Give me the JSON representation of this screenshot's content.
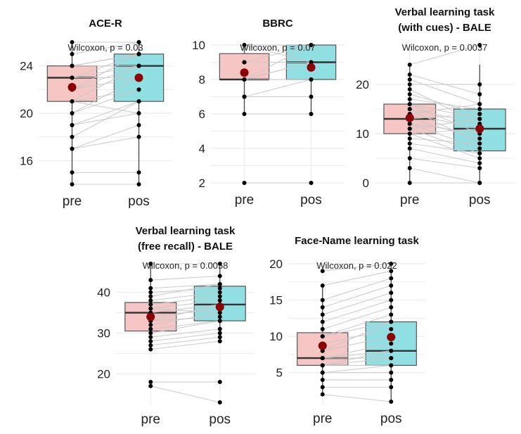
{
  "colors": {
    "pre": "#f5c6c3",
    "pos": "#8fdfe3",
    "mean": "#8b0000",
    "pair": "#c8c8c8",
    "point": "#000000",
    "grid": "#ececec"
  },
  "chart_data": [
    {
      "type": "boxplot",
      "title": [
        "ACE-R"
      ],
      "test_label": "Wilcoxon, p = 0.03",
      "categories": [
        "pre",
        "pos"
      ],
      "ylim": [
        14,
        26
      ],
      "yticks": [
        16,
        20,
        24
      ],
      "boxes": [
        {
          "group": "pre",
          "q1": 21,
          "median": 23,
          "q3": 24,
          "whisker_low": 14,
          "whisker_high": 26,
          "mean": 22.2
        },
        {
          "group": "pos",
          "q1": 21,
          "median": 24,
          "q3": 25,
          "whisker_low": 14,
          "whisker_high": 26,
          "mean": 23
        }
      ],
      "pairs": [
        [
          26,
          26
        ],
        [
          25,
          26
        ],
        [
          24,
          25
        ],
        [
          24,
          25
        ],
        [
          24,
          24
        ],
        [
          23,
          25
        ],
        [
          23,
          24
        ],
        [
          23,
          23
        ],
        [
          22,
          25
        ],
        [
          22,
          24
        ],
        [
          22,
          23
        ],
        [
          21,
          24
        ],
        [
          21,
          22
        ],
        [
          21,
          20
        ],
        [
          20,
          23
        ],
        [
          20,
          22
        ],
        [
          19,
          21
        ],
        [
          19,
          20
        ],
        [
          18,
          21
        ],
        [
          17,
          19
        ],
        [
          17,
          18
        ],
        [
          15,
          15
        ],
        [
          14,
          14
        ]
      ]
    },
    {
      "type": "boxplot",
      "title": [
        "BBRC"
      ],
      "test_label": "Wilcoxon, p = 0.07",
      "categories": [
        "pre",
        "pos"
      ],
      "ylim": [
        2,
        10
      ],
      "yticks": [
        2,
        4,
        6,
        8,
        10
      ],
      "boxes": [
        {
          "group": "pre",
          "q1": 8,
          "median": 8,
          "q3": 9.5,
          "whisker_low": 6,
          "whisker_high": 10,
          "mean": 8.4
        },
        {
          "group": "pos",
          "q1": 8,
          "median": 9,
          "q3": 10,
          "whisker_low": 6,
          "whisker_high": 10,
          "mean": 8.7
        }
      ],
      "pairs": [
        [
          10,
          10
        ],
        [
          10,
          9
        ],
        [
          9,
          10
        ],
        [
          9,
          9
        ],
        [
          8,
          9
        ],
        [
          8,
          10
        ],
        [
          8,
          8
        ],
        [
          8,
          9
        ],
        [
          7,
          8
        ],
        [
          7,
          7
        ],
        [
          6,
          6
        ],
        [
          2,
          2
        ]
      ]
    },
    {
      "type": "boxplot",
      "title": [
        "Verbal learning task",
        "(with cues) - BALE"
      ],
      "test_label": "Wilcoxon, p = 0.0037",
      "categories": [
        "pre",
        "pos"
      ],
      "ylim": [
        0,
        28
      ],
      "yticks": [
        0,
        10,
        20
      ],
      "boxes": [
        {
          "group": "pre",
          "q1": 10,
          "median": 13,
          "q3": 16,
          "whisker_low": 0,
          "whisker_high": 24,
          "mean": 13.2
        },
        {
          "group": "pos",
          "q1": 6.5,
          "median": 11,
          "q3": 15,
          "whisker_low": 0,
          "whisker_high": 24,
          "mean": 11
        }
      ],
      "pairs": [
        [
          24,
          28
        ],
        [
          22,
          18
        ],
        [
          21,
          16
        ],
        [
          20,
          20
        ],
        [
          19,
          12
        ],
        [
          18,
          14
        ],
        [
          17,
          15
        ],
        [
          16,
          13
        ],
        [
          16,
          10
        ],
        [
          15,
          12
        ],
        [
          15,
          8
        ],
        [
          14,
          16
        ],
        [
          14,
          11
        ],
        [
          13,
          9
        ],
        [
          13,
          14
        ],
        [
          12,
          7
        ],
        [
          12,
          10
        ],
        [
          11,
          6
        ],
        [
          11,
          13
        ],
        [
          10,
          11
        ],
        [
          10,
          5
        ],
        [
          9,
          8
        ],
        [
          8,
          6
        ],
        [
          7,
          4
        ],
        [
          5,
          3
        ],
        [
          3,
          0
        ],
        [
          0,
          0
        ]
      ]
    },
    {
      "type": "boxplot",
      "title": [
        "Verbal learning task",
        "(free recall) - BALE"
      ],
      "test_label": "Wilcoxon, p = 0.0058",
      "categories": [
        "pre",
        "pos"
      ],
      "ylim": [
        13,
        47
      ],
      "yticks": [
        20,
        30,
        40
      ],
      "boxes": [
        {
          "group": "pre",
          "q1": 30.5,
          "median": 35,
          "q3": 37.5,
          "whisker_low": 26,
          "whisker_high": 47,
          "mean": 34
        },
        {
          "group": "pos",
          "q1": 33,
          "median": 37,
          "q3": 41.5,
          "whisker_low": 28,
          "whisker_high": 47,
          "mean": 36.4
        }
      ],
      "pairs": [
        [
          47,
          47
        ],
        [
          43,
          44
        ],
        [
          41,
          42
        ],
        [
          40,
          41
        ],
        [
          39,
          42
        ],
        [
          38,
          40
        ],
        [
          37,
          39
        ],
        [
          36,
          38
        ],
        [
          36,
          35
        ],
        [
          35,
          37
        ],
        [
          34,
          36
        ],
        [
          33,
          37
        ],
        [
          33,
          34
        ],
        [
          32,
          35
        ],
        [
          31,
          33
        ],
        [
          30,
          33
        ],
        [
          29,
          31
        ],
        [
          28,
          30
        ],
        [
          27,
          29
        ],
        [
          26,
          28
        ],
        [
          18,
          18
        ],
        [
          17,
          13
        ]
      ]
    },
    {
      "type": "boxplot",
      "title": [
        "Face-Name learning task"
      ],
      "test_label": "Wilcoxon, p = 0.022",
      "categories": [
        "pre",
        "pos"
      ],
      "ylim": [
        1,
        20
      ],
      "yticks": [
        5,
        10,
        15,
        20
      ],
      "boxes": [
        {
          "group": "pre",
          "q1": 6,
          "median": 7,
          "q3": 10.5,
          "whisker_low": 2,
          "whisker_high": 17,
          "mean": 8.7
        },
        {
          "group": "pos",
          "q1": 6,
          "median": 8,
          "q3": 12,
          "whisker_low": 1,
          "whisker_high": 20,
          "mean": 9.9
        }
      ],
      "pairs": [
        [
          19,
          20
        ],
        [
          17,
          19
        ],
        [
          15,
          18
        ],
        [
          14,
          17
        ],
        [
          13,
          16
        ],
        [
          12,
          15
        ],
        [
          11,
          14
        ],
        [
          10,
          13
        ],
        [
          10,
          12
        ],
        [
          9,
          11
        ],
        [
          8,
          12
        ],
        [
          8,
          10
        ],
        [
          7,
          9
        ],
        [
          7,
          8
        ],
        [
          7,
          7
        ],
        [
          6,
          8
        ],
        [
          6,
          7
        ],
        [
          6,
          6
        ],
        [
          5,
          5
        ],
        [
          5,
          6
        ],
        [
          4,
          4
        ],
        [
          3,
          3
        ],
        [
          2,
          1
        ]
      ]
    }
  ]
}
